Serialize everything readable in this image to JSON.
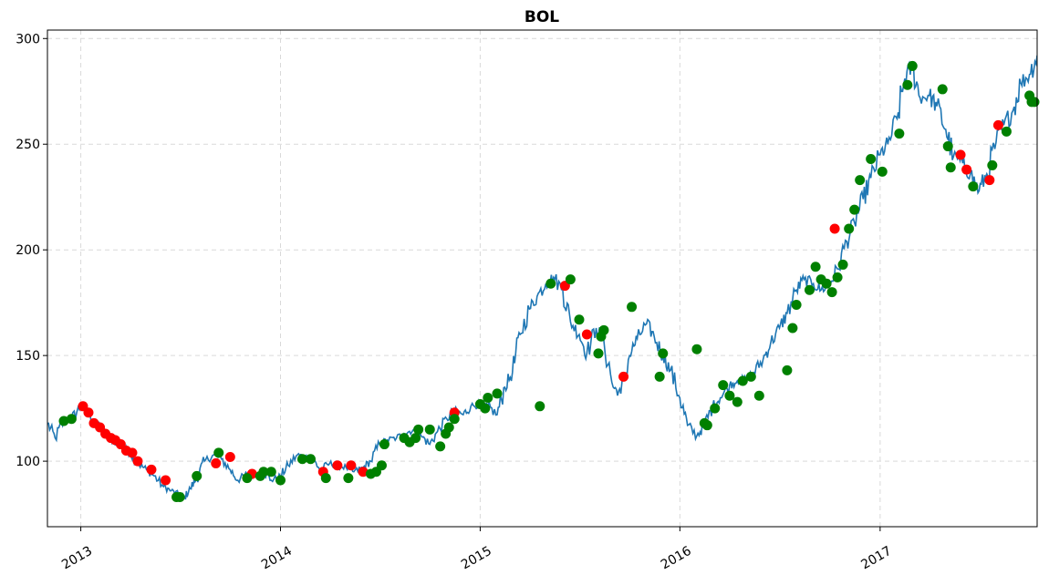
{
  "chart_data": {
    "type": "line",
    "title": "BOL",
    "xlabel": "",
    "ylabel": "",
    "x_ticks": [
      "2013",
      "2014",
      "2015",
      "2016",
      "2017"
    ],
    "y_ticks": [
      "100",
      "150",
      "200",
      "250",
      "300"
    ],
    "ylim": [
      69,
      304
    ],
    "xlim": [
      "2012-11-01",
      "2017-10-15"
    ],
    "grid": true,
    "colors": {
      "line": "#1f77b4",
      "buy": "#008000",
      "sell": "#ff0000"
    },
    "price_series": {
      "name": "",
      "x": [
        "2012-11-01",
        "2012-11-15",
        "2012-12-01",
        "2012-12-15",
        "2013-01-01",
        "2013-01-15",
        "2013-02-01",
        "2013-02-15",
        "2013-03-01",
        "2013-03-15",
        "2013-04-01",
        "2013-04-15",
        "2013-05-01",
        "2013-05-15",
        "2013-06-01",
        "2013-06-15",
        "2013-07-01",
        "2013-07-10",
        "2013-07-20",
        "2013-08-01",
        "2013-08-15",
        "2013-09-01",
        "2013-09-15",
        "2013-10-01",
        "2013-10-15",
        "2013-11-01",
        "2013-11-15",
        "2013-12-01",
        "2013-12-15",
        "2014-01-01",
        "2014-01-15",
        "2014-02-01",
        "2014-02-15",
        "2014-03-01",
        "2014-03-15",
        "2014-04-01",
        "2014-04-15",
        "2014-05-01",
        "2014-05-15",
        "2014-06-01",
        "2014-06-15",
        "2014-07-01",
        "2014-07-15",
        "2014-08-01",
        "2014-08-15",
        "2014-09-01",
        "2014-09-15",
        "2014-10-01",
        "2014-10-15",
        "2014-11-01",
        "2014-11-15",
        "2014-12-01",
        "2014-12-15",
        "2015-01-01",
        "2015-01-15",
        "2015-02-01",
        "2015-02-15",
        "2015-03-01",
        "2015-03-15",
        "2015-04-01",
        "2015-04-15",
        "2015-05-01",
        "2015-05-15",
        "2015-06-01",
        "2015-06-15",
        "2015-07-01",
        "2015-07-15",
        "2015-08-01",
        "2015-08-15",
        "2015-09-01",
        "2015-09-15",
        "2015-10-01",
        "2015-10-15",
        "2015-11-01",
        "2015-11-15",
        "2015-12-01",
        "2015-12-15",
        "2016-01-01",
        "2016-01-15",
        "2016-02-01",
        "2016-02-15",
        "2016-03-01",
        "2016-03-15",
        "2016-04-01",
        "2016-04-15",
        "2016-05-01",
        "2016-05-15",
        "2016-06-01",
        "2016-06-15",
        "2016-07-01",
        "2016-07-15",
        "2016-08-01",
        "2016-08-15",
        "2016-09-01",
        "2016-09-15",
        "2016-10-01",
        "2016-10-15",
        "2016-11-01",
        "2016-11-15",
        "2016-12-01",
        "2016-12-15",
        "2017-01-01",
        "2017-01-15",
        "2017-02-01",
        "2017-02-15",
        "2017-03-01",
        "2017-03-15",
        "2017-04-01",
        "2017-04-15",
        "2017-05-01",
        "2017-05-15",
        "2017-06-01",
        "2017-06-15",
        "2017-07-01",
        "2017-07-15",
        "2017-08-01",
        "2017-08-15",
        "2017-09-01",
        "2017-09-15",
        "2017-10-01",
        "2017-10-15"
      ],
      "y": [
        118,
        111,
        119,
        120,
        126,
        122,
        117,
        113,
        110,
        107,
        104,
        99,
        96,
        93,
        88,
        86,
        84,
        83,
        87,
        92,
        100,
        103,
        101,
        96,
        91,
        94,
        93,
        95,
        91,
        93,
        98,
        103,
        102,
        101,
        96,
        99,
        98,
        97,
        95,
        97,
        100,
        108,
        110,
        111,
        113,
        115,
        112,
        108,
        114,
        120,
        124,
        122,
        126,
        127,
        126,
        122,
        135,
        142,
        160,
        172,
        178,
        184,
        187,
        181,
        166,
        160,
        151,
        163,
        157,
        135,
        132,
        150,
        158,
        165,
        159,
        150,
        143,
        130,
        117,
        112,
        117,
        126,
        130,
        136,
        138,
        139,
        142,
        148,
        156,
        163,
        170,
        181,
        186,
        184,
        181,
        184,
        191,
        204,
        213,
        224,
        234,
        245,
        250,
        262,
        281,
        287,
        272,
        273,
        268,
        257,
        244,
        241,
        236,
        228,
        236,
        251,
        259,
        266,
        279,
        283,
        292
      ]
    },
    "sell_signals": {
      "x": [
        "2013-01-05",
        "2013-01-15",
        "2013-01-25",
        "2013-02-05",
        "2013-02-15",
        "2013-02-25",
        "2013-03-05",
        "2013-03-15",
        "2013-03-25",
        "2013-04-05",
        "2013-04-15",
        "2013-05-10",
        "2013-06-05",
        "2013-09-05",
        "2013-10-01",
        "2013-11-10",
        "2014-03-20",
        "2014-04-15",
        "2014-05-10",
        "2014-06-01",
        "2014-11-15",
        "2015-06-05",
        "2015-07-15",
        "2015-09-20",
        "2016-10-10",
        "2017-05-28",
        "2017-06-08",
        "2017-07-20",
        "2017-08-05"
      ],
      "y": [
        126,
        123,
        118,
        116,
        113,
        111,
        110,
        108,
        105,
        104,
        100,
        96,
        91,
        99,
        102,
        94,
        95,
        98,
        98,
        95,
        123,
        183,
        160,
        140,
        210,
        245,
        238,
        233,
        259
      ]
    },
    "buy_signals": {
      "x": [
        "2012-12-01",
        "2012-12-15",
        "2013-06-25",
        "2013-07-01",
        "2013-08-01",
        "2013-09-10",
        "2013-11-01",
        "2013-11-25",
        "2013-12-01",
        "2013-12-15",
        "2014-01-01",
        "2014-02-10",
        "2014-02-25",
        "2014-03-25",
        "2014-05-05",
        "2014-06-15",
        "2014-06-25",
        "2014-07-05",
        "2014-07-10",
        "2014-08-15",
        "2014-08-25",
        "2014-09-05",
        "2014-09-10",
        "2014-10-01",
        "2014-10-20",
        "2014-10-30",
        "2014-11-05",
        "2014-11-15",
        "2015-01-01",
        "2015-01-10",
        "2015-01-15",
        "2015-02-01",
        "2015-04-20",
        "2015-05-10",
        "2015-06-15",
        "2015-07-01",
        "2015-08-05",
        "2015-08-10",
        "2015-08-15",
        "2015-10-05",
        "2015-11-25",
        "2015-12-01",
        "2016-02-01",
        "2016-02-15",
        "2016-02-20",
        "2016-03-05",
        "2016-03-20",
        "2016-04-01",
        "2016-04-15",
        "2016-04-25",
        "2016-05-10",
        "2016-05-25",
        "2016-07-15",
        "2016-07-25",
        "2016-08-01",
        "2016-08-25",
        "2016-09-05",
        "2016-09-15",
        "2016-09-25",
        "2016-10-05",
        "2016-10-15",
        "2016-10-25",
        "2016-11-05",
        "2016-11-15",
        "2016-11-25",
        "2016-12-15",
        "2017-01-05",
        "2017-02-05",
        "2017-02-20",
        "2017-03-01",
        "2017-04-25",
        "2017-05-05",
        "2017-05-10",
        "2017-06-20",
        "2017-07-25",
        "2017-08-20",
        "2017-10-01",
        "2017-10-05",
        "2017-10-10"
      ],
      "y": [
        119,
        120,
        83,
        83,
        93,
        104,
        92,
        93,
        95,
        95,
        91,
        101,
        101,
        92,
        92,
        94,
        95,
        98,
        108,
        111,
        109,
        111,
        115,
        115,
        107,
        113,
        116,
        120,
        127,
        125,
        130,
        132,
        126,
        184,
        186,
        167,
        151,
        159,
        162,
        173,
        140,
        151,
        153,
        118,
        117,
        125,
        136,
        131,
        128,
        138,
        140,
        131,
        143,
        163,
        174,
        181,
        192,
        186,
        184,
        180,
        187,
        193,
        210,
        219,
        233,
        243,
        237,
        255,
        278,
        287,
        276,
        249,
        239,
        230,
        240,
        256,
        273,
        270,
        270
      ]
    }
  }
}
